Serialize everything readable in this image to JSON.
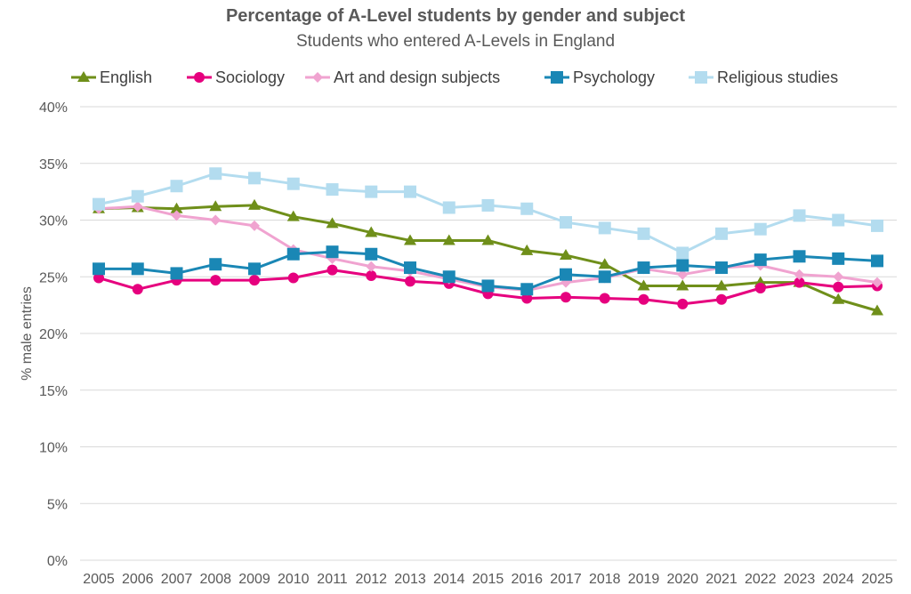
{
  "chart_data": {
    "type": "line",
    "title": "Percentage of A-Level students by gender and subject",
    "subtitle": "Students who entered A-Levels in England",
    "xlabel": "",
    "ylabel": "% male entries",
    "ylim": [
      0,
      40
    ],
    "yticks": [
      0,
      5,
      10,
      15,
      20,
      25,
      30,
      35,
      40
    ],
    "ytick_labels": [
      "0%",
      "5%",
      "10%",
      "15%",
      "20%",
      "25%",
      "30%",
      "35%",
      "40%"
    ],
    "grid": true,
    "legend_position": "top",
    "x": [
      "2005",
      "2006",
      "2007",
      "2008",
      "2009",
      "2010",
      "2011",
      "2012",
      "2013",
      "2014",
      "2015",
      "2016",
      "2017",
      "2018",
      "2019",
      "2020",
      "2021",
      "2022",
      "2023",
      "2024",
      "2025"
    ],
    "series": [
      {
        "name": "English",
        "color": "#6f8f1a",
        "marker": "triangle",
        "values": [
          31.0,
          31.1,
          31.0,
          31.2,
          31.3,
          30.3,
          29.7,
          28.9,
          28.2,
          28.2,
          28.2,
          27.3,
          26.9,
          26.1,
          24.2,
          24.2,
          24.2,
          24.5,
          24.5,
          23.0,
          22.0
        ]
      },
      {
        "name": "Sociology",
        "color": "#e6007e",
        "marker": "circle",
        "values": [
          24.9,
          23.9,
          24.7,
          24.7,
          24.7,
          24.9,
          25.6,
          25.1,
          24.6,
          24.4,
          23.5,
          23.1,
          23.2,
          23.1,
          23.0,
          22.6,
          23.0,
          24.0,
          24.5,
          24.1,
          24.2
        ]
      },
      {
        "name": "Art and design subjects",
        "color": "#f0a3d0",
        "marker": "diamond",
        "values": [
          31.0,
          31.2,
          30.4,
          30.0,
          29.5,
          27.4,
          26.6,
          25.9,
          25.5,
          24.8,
          24.1,
          23.8,
          24.5,
          24.9,
          25.7,
          25.2,
          25.8,
          26.0,
          25.2,
          25.0,
          24.5
        ]
      },
      {
        "name": "Psychology",
        "color": "#1a87b5",
        "marker": "square",
        "values": [
          25.7,
          25.7,
          25.3,
          26.1,
          25.7,
          27.0,
          27.2,
          27.0,
          25.8,
          25.0,
          24.2,
          23.9,
          25.2,
          25.0,
          25.8,
          26.0,
          25.8,
          26.5,
          26.8,
          26.6,
          26.4
        ]
      },
      {
        "name": "Religious studies",
        "color": "#b3dcef",
        "marker": "square",
        "values": [
          31.4,
          32.1,
          33.0,
          34.1,
          33.7,
          33.2,
          32.7,
          32.5,
          32.5,
          31.1,
          31.3,
          31.0,
          29.8,
          29.3,
          28.8,
          27.1,
          28.8,
          29.2,
          30.4,
          30.0,
          29.5
        ]
      }
    ]
  }
}
